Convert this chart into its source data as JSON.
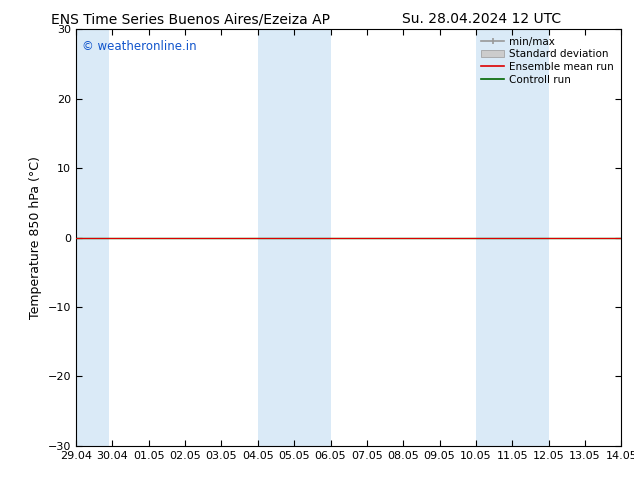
{
  "title_left": "ENS Time Series Buenos Aires/Ezeiza AP",
  "title_right": "Su. 28.04.2024 12 UTC",
  "ylabel": "Temperature 850 hPa (°C)",
  "xlabel_ticks": [
    "29.04",
    "30.04",
    "01.05",
    "02.05",
    "03.05",
    "04.05",
    "05.05",
    "06.05",
    "07.05",
    "08.05",
    "09.05",
    "10.05",
    "11.05",
    "12.05",
    "13.05",
    "14.05"
  ],
  "xlim": [
    0,
    15
  ],
  "ylim": [
    -30,
    30
  ],
  "yticks": [
    -30,
    -20,
    -10,
    0,
    10,
    20,
    30
  ],
  "y_zero_line": 0,
  "shaded_bands": [
    {
      "x_start": 0.0,
      "x_end": 0.9,
      "color": "#daeaf7"
    },
    {
      "x_start": 5.0,
      "x_end": 6.0,
      "color": "#daeaf7"
    },
    {
      "x_start": 6.0,
      "x_end": 7.0,
      "color": "#daeaf7"
    },
    {
      "x_start": 11.0,
      "x_end": 12.0,
      "color": "#daeaf7"
    },
    {
      "x_start": 12.0,
      "x_end": 13.0,
      "color": "#daeaf7"
    }
  ],
  "control_run_y": 0.0,
  "ensemble_mean_y": 0.0,
  "watermark_text": "© weatheronline.in",
  "watermark_color": "#1155cc",
  "bg_color": "#ffffff",
  "plot_bg_color": "#ffffff",
  "legend_entries": [
    {
      "label": "min/max",
      "color": "#aaaaaa"
    },
    {
      "label": "Standard deviation",
      "color": "#cccccc"
    },
    {
      "label": "Ensemble mean run",
      "color": "#dd0000"
    },
    {
      "label": "Controll run",
      "color": "#006600"
    }
  ],
  "title_fontsize": 10,
  "axis_label_fontsize": 9,
  "tick_fontsize": 8,
  "legend_fontsize": 7.5
}
